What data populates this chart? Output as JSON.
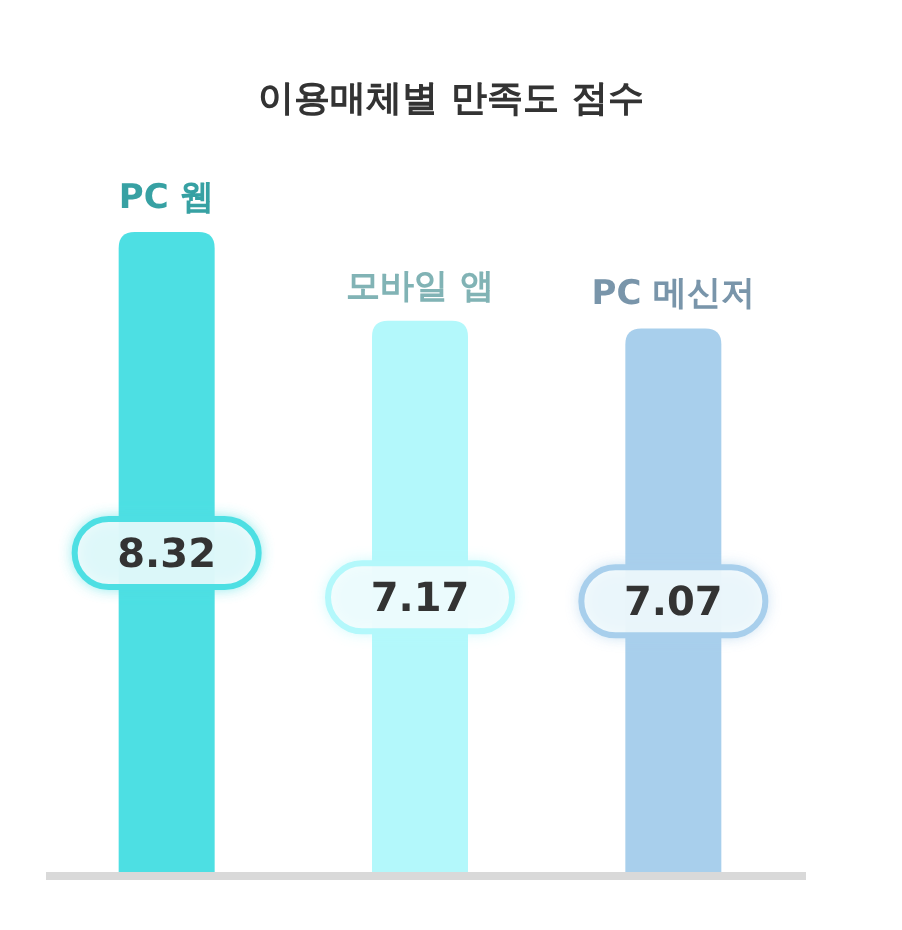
{
  "chart_data": {
    "type": "bar",
    "title": "이용매체별 만족도 점수",
    "categories": [
      "PC 웹",
      "모바일 앱",
      "PC 메신저"
    ],
    "values": [
      8.32,
      7.17,
      7.07
    ],
    "colors": [
      "#4ddfe3",
      "#b3f8fb",
      "#a8cfec"
    ],
    "data_labels": true
  }
}
